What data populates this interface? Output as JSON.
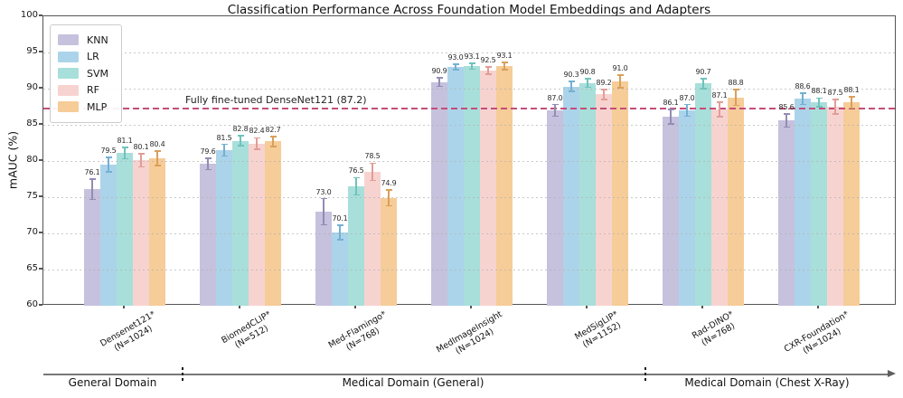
{
  "title": "Classification Performance Across Foundation Model Embeddings and Adapters",
  "ylabel": "mAUC (%)",
  "chart_data": {
    "type": "bar",
    "title": "Classification Performance Across Foundation Model Embeddings and Adapters",
    "xlabel": "",
    "ylabel": "mAUC (%)",
    "ylim": [
      60,
      100
    ],
    "yticks": [
      60,
      65,
      70,
      75,
      80,
      85,
      90,
      95,
      100
    ],
    "grid": "horizontal-dotted",
    "legend_position": "upper-left",
    "categories": [
      {
        "name": "Densenet121*",
        "n": "(N=1024)"
      },
      {
        "name": "BiomedCLIP*",
        "n": "(N=512)"
      },
      {
        "name": "Med-Flamingo*",
        "n": "(N=768)"
      },
      {
        "name": "MedImageInsight",
        "n": "(N=1024)"
      },
      {
        "name": "MedSigLIP*",
        "n": "(N=1152)"
      },
      {
        "name": "Rad-DINO*",
        "n": "(N=768)"
      },
      {
        "name": "CXR-Foundation*",
        "n": "(N=1024)"
      }
    ],
    "series": [
      {
        "name": "KNN",
        "color": "#c6c1dd",
        "err_color": "#938cb4",
        "values": [
          76.1,
          79.6,
          73.0,
          90.9,
          87.0,
          86.1,
          85.6
        ],
        "errors": [
          1.4,
          0.8,
          1.8,
          0.6,
          0.8,
          1.0,
          0.9
        ]
      },
      {
        "name": "LR",
        "color": "#abd4ea",
        "err_color": "#74b0d2",
        "values": [
          79.5,
          81.5,
          70.1,
          93.0,
          90.3,
          87.0,
          88.6
        ],
        "errors": [
          1.0,
          0.8,
          1.0,
          0.4,
          0.7,
          0.8,
          0.8
        ]
      },
      {
        "name": "SVM",
        "color": "#a8dfda",
        "err_color": "#6fc3bc",
        "values": [
          81.1,
          82.8,
          76.5,
          93.1,
          90.8,
          90.7,
          88.1
        ],
        "errors": [
          0.8,
          0.7,
          1.2,
          0.4,
          0.6,
          0.7,
          0.6
        ]
      },
      {
        "name": "RF",
        "color": "#f7d3d0",
        "err_color": "#e29d97",
        "values": [
          80.1,
          82.4,
          78.5,
          92.5,
          89.2,
          87.1,
          87.5
        ],
        "errors": [
          0.9,
          0.8,
          1.2,
          0.5,
          0.7,
          1.0,
          1.0
        ]
      },
      {
        "name": "MLP",
        "color": "#f6cc98",
        "err_color": "#d9a05b",
        "values": [
          80.4,
          82.7,
          74.9,
          93.1,
          91.0,
          88.8,
          88.1
        ],
        "errors": [
          1.0,
          0.7,
          1.1,
          0.5,
          0.9,
          1.1,
          0.8
        ]
      }
    ],
    "reference_line": {
      "value": 87.2,
      "label": "Fully fine-tuned DenseNet121 (87.2)",
      "color": "#c44d78"
    },
    "domain_groups": [
      {
        "label": "General Domain",
        "from": 0,
        "to": 0
      },
      {
        "label": "Medical Domain (General)",
        "from": 1,
        "to": 4
      },
      {
        "label": "Medical Domain (Chest X-Ray)",
        "from": 5,
        "to": 6
      }
    ]
  }
}
